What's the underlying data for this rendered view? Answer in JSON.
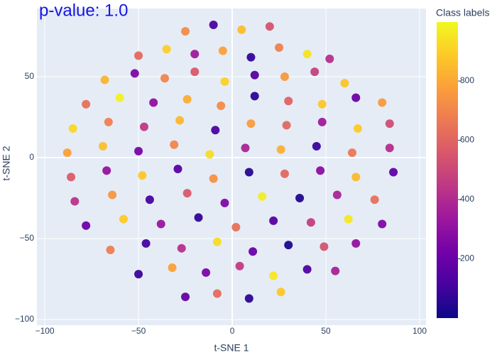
{
  "chart_data": {
    "type": "scatter",
    "title": "p-value: 1.0",
    "x_label": "t-SNE 1",
    "y_label": "t-SNE 2",
    "colorbar_title": "Class labels",
    "xlim": [
      -104.2,
      103.4
    ],
    "ylim": [
      -103.5,
      92.1
    ],
    "xticks": [
      {
        "value": -100,
        "label": "−100"
      },
      {
        "value": -50,
        "label": "−50"
      },
      0,
      50,
      100
    ],
    "yticks": [
      {
        "value": -100,
        "label": "−100"
      },
      {
        "value": -50,
        "label": "−50"
      },
      0,
      50
    ],
    "clim": [
      0,
      999
    ],
    "cticks": [
      200,
      400,
      600,
      800
    ],
    "colorscale": [
      "#0d0887",
      "#46039f",
      "#7201a8",
      "#9c179e",
      "#bd3786",
      "#d8576b",
      "#ed7953",
      "#fb9f3a",
      "#fdca26",
      "#f0f921"
    ],
    "grid": true,
    "x": [
      -25,
      -10,
      5,
      20,
      -50,
      -35,
      -20,
      -5,
      10,
      25,
      40,
      52,
      -68,
      -52,
      -36,
      -20,
      -4,
      12,
      28,
      44,
      60,
      -78,
      -60,
      -42,
      -24,
      -6,
      12,
      30,
      48,
      66,
      80,
      -85,
      -66,
      -47,
      -28,
      -9,
      10,
      29,
      48,
      67,
      84,
      -88,
      -69,
      -50,
      -31,
      -12,
      7,
      26,
      45,
      64,
      84,
      -86,
      -67,
      -48,
      -29,
      -10,
      9,
      28,
      47,
      66,
      86,
      -84,
      -64,
      -44,
      -24,
      -4,
      16,
      36,
      56,
      76,
      -78,
      -58,
      -38,
      -18,
      2,
      22,
      42,
      62,
      80,
      -65,
      -46,
      -27,
      -8,
      11,
      30,
      49,
      66,
      -50,
      -32,
      -14,
      4,
      22,
      40,
      55,
      -25,
      -8,
      9,
      26
    ],
    "y": [
      78,
      82,
      79,
      81,
      63,
      67,
      64,
      66,
      62,
      68,
      64,
      61,
      48,
      52,
      49,
      53,
      47,
      51,
      50,
      53,
      46,
      33,
      37,
      34,
      36,
      32,
      38,
      35,
      33,
      37,
      34,
      18,
      22,
      19,
      23,
      17,
      21,
      20,
      22,
      18,
      21,
      3,
      7,
      4,
      8,
      2,
      6,
      5,
      7,
      3,
      6,
      -12,
      -8,
      -11,
      -7,
      -13,
      -9,
      -10,
      -8,
      -12,
      -9,
      -27,
      -23,
      -26,
      -22,
      -28,
      -24,
      -25,
      -23,
      -26,
      -42,
      -38,
      -41,
      -37,
      -43,
      -39,
      -40,
      -38,
      -41,
      -57,
      -53,
      -56,
      -52,
      -58,
      -54,
      -55,
      -53,
      -72,
      -68,
      -71,
      -67,
      -73,
      -69,
      -70,
      -86,
      -84,
      -87,
      -83
    ],
    "class_labels": [
      720,
      130,
      860,
      540,
      610,
      900,
      340,
      780,
      80,
      690,
      950,
      420,
      830,
      250,
      700,
      560,
      910,
      150,
      760,
      480,
      870,
      640,
      980,
      300,
      810,
      720,
      60,
      590,
      880,
      210,
      760,
      920,
      690,
      450,
      840,
      130,
      770,
      610,
      350,
      890,
      520,
      780,
      860,
      240,
      700,
      930,
      380,
      820,
      90,
      660,
      410,
      570,
      320,
      880,
      160,
      740,
      50,
      610,
      290,
      850,
      180,
      430,
      750,
      120,
      560,
      260,
      970,
      40,
      380,
      640,
      220,
      890,
      330,
      70,
      640,
      150,
      470,
      960,
      260,
      680,
      110,
      420,
      930,
      200,
      30,
      540,
      310,
      90,
      780,
      250,
      460,
      960,
      140,
      370,
      190,
      620,
      60,
      880
    ]
  }
}
